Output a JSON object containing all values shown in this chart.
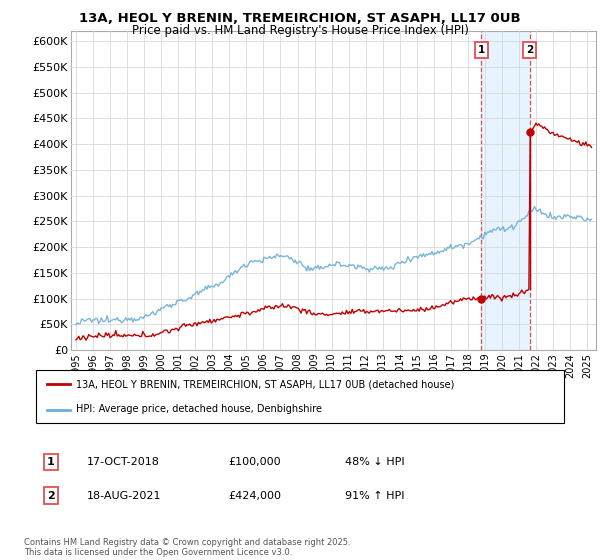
{
  "title": "13A, HEOL Y BRENIN, TREMEIRCHION, ST ASAPH, LL17 0UB",
  "subtitle": "Price paid vs. HM Land Registry's House Price Index (HPI)",
  "ylim": [
    0,
    620000
  ],
  "xlim_start": 1994.7,
  "xlim_end": 2025.5,
  "yticks": [
    0,
    50000,
    100000,
    150000,
    200000,
    250000,
    300000,
    350000,
    400000,
    450000,
    500000,
    550000,
    600000
  ],
  "ytick_labels": [
    "£0",
    "£50K",
    "£100K",
    "£150K",
    "£200K",
    "£250K",
    "£300K",
    "£350K",
    "£400K",
    "£450K",
    "£500K",
    "£550K",
    "£600K"
  ],
  "xticks": [
    1995,
    1996,
    1997,
    1998,
    1999,
    2000,
    2001,
    2002,
    2003,
    2004,
    2005,
    2006,
    2007,
    2008,
    2009,
    2010,
    2011,
    2012,
    2013,
    2014,
    2015,
    2016,
    2017,
    2018,
    2019,
    2020,
    2021,
    2022,
    2023,
    2024,
    2025
  ],
  "hpi_color": "#6baed6",
  "price_color": "#c00000",
  "vline_color": "#e05050",
  "span_color": "#ddeeff",
  "point1_x": 2018.79,
  "point1_y": 100000,
  "point2_x": 2021.63,
  "point2_y": 424000,
  "legend_entry1": "13A, HEOL Y BRENIN, TREMEIRCHION, ST ASAPH, LL17 0UB (detached house)",
  "legend_entry2": "HPI: Average price, detached house, Denbighshire",
  "table_row1_num": "1",
  "table_row1_date": "17-OCT-2018",
  "table_row1_price": "£100,000",
  "table_row1_hpi": "48% ↓ HPI",
  "table_row2_num": "2",
  "table_row2_date": "18-AUG-2021",
  "table_row2_price": "£424,000",
  "table_row2_hpi": "91% ↑ HPI",
  "footer": "Contains HM Land Registry data © Crown copyright and database right 2025.\nThis data is licensed under the Open Government Licence v3.0."
}
